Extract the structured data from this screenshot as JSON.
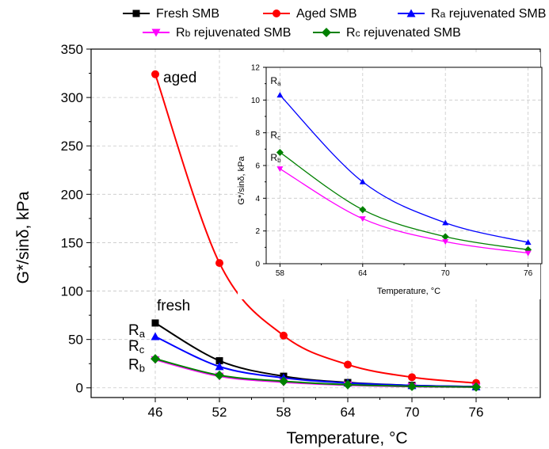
{
  "chart_data": [
    {
      "type": "line",
      "xlabel": "Temperature, °C",
      "ylabel": "G*/sinδ, kPa",
      "x": [
        46,
        52,
        58,
        64,
        70,
        76
      ],
      "xlim": [
        40,
        82
      ],
      "ylim": [
        -10,
        350
      ],
      "xticks": [
        46,
        52,
        58,
        64,
        70,
        76
      ],
      "yticks": [
        0,
        50,
        100,
        150,
        200,
        250,
        300,
        350
      ],
      "grid": true,
      "legend_position": "top",
      "series": [
        {
          "name": "Fresh SMB",
          "color": "#000000",
          "marker": "square",
          "values": [
            67,
            28,
            12,
            5.5,
            2.5,
            1.2
          ]
        },
        {
          "name": "Aged SMB",
          "color": "#ff0000",
          "marker": "circle",
          "values": [
            324,
            129,
            54,
            24,
            11,
            5
          ]
        },
        {
          "name": "Ra rejuvenated SMB",
          "color": "#0000ff",
          "marker": "triangle-up",
          "values": [
            53,
            22,
            10.3,
            5,
            2.5,
            1.3
          ]
        },
        {
          "name": "Rb rejuvenated SMB",
          "color": "#ff00ff",
          "marker": "triangle-down",
          "values": [
            29,
            12,
            5.8,
            2.8,
            1.3,
            0.7
          ]
        },
        {
          "name": "Rc rejuvenated SMB",
          "color": "#008000",
          "marker": "diamond",
          "values": [
            30,
            13,
            6.8,
            3.3,
            1.6,
            0.8
          ]
        }
      ],
      "annotations": [
        {
          "text": "aged",
          "x": 46,
          "y": 324
        },
        {
          "text": "fresh",
          "x": 46,
          "y": 67
        },
        {
          "main": "R",
          "sub": "a",
          "x": 46,
          "y": 53
        },
        {
          "main": "R",
          "sub": "c",
          "x": 46,
          "y": 30
        },
        {
          "main": "R",
          "sub": "b",
          "x": 46,
          "y": 29
        }
      ]
    },
    {
      "type": "line",
      "inset": true,
      "xlabel": "Temperature, °C",
      "ylabel": "G*/sinδ, kPa",
      "x": [
        58,
        64,
        70,
        76
      ],
      "xlim": [
        57,
        77
      ],
      "ylim": [
        0,
        12
      ],
      "xticks": [
        58,
        64,
        70,
        76
      ],
      "yticks": [
        0,
        2,
        4,
        6,
        8,
        10,
        12
      ],
      "grid": true,
      "series": [
        {
          "name": "Ra rejuvenated SMB",
          "color": "#0000ff",
          "marker": "triangle-up",
          "values": [
            10.3,
            5,
            2.5,
            1.3
          ]
        },
        {
          "name": "Rc rejuvenated SMB",
          "color": "#008000",
          "marker": "diamond",
          "values": [
            6.8,
            3.3,
            1.65,
            0.85
          ]
        },
        {
          "name": "Rb rejuvenated SMB",
          "color": "#ff00ff",
          "marker": "triangle-down",
          "values": [
            5.8,
            2.75,
            1.35,
            0.65
          ]
        }
      ],
      "annotations": [
        {
          "main": "R",
          "sub": "a",
          "x": 58,
          "y": 10.3
        },
        {
          "main": "R",
          "sub": "c",
          "x": 58,
          "y": 6.8
        },
        {
          "main": "R",
          "sub": "b",
          "x": 58,
          "y": 5.8
        }
      ]
    }
  ]
}
